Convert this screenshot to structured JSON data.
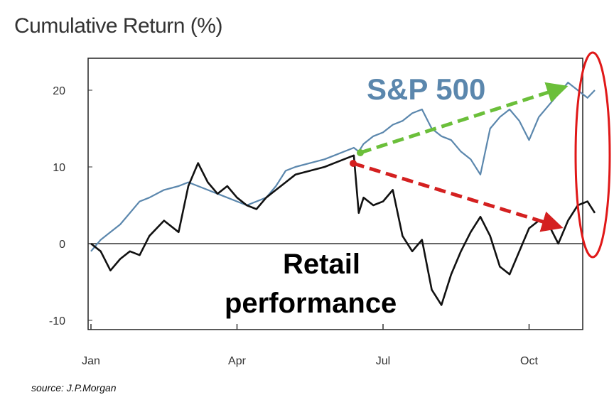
{
  "title": "Cumulative Return (%)",
  "source": "source: J.P.Morgan",
  "colors": {
    "sp500": "#5b87ad",
    "retail": "#111111",
    "green_arrow": "#6bbf3a",
    "red_arrow": "#d42020",
    "highlight_ellipse": "#e01818"
  },
  "chart_data": {
    "type": "line",
    "title": "Cumulative Return (%)",
    "xlabel": "",
    "ylabel": "",
    "x_range": [
      "Jan",
      "Nov"
    ],
    "ylim": [
      -11,
      24
    ],
    "x_ticks": [
      "Jan",
      "Apr",
      "Jul",
      "Oct"
    ],
    "y_ticks": [
      20,
      10,
      0,
      -10
    ],
    "grid": false,
    "zero_line": true,
    "x_unit": "months since start of year",
    "series": [
      {
        "name": "S&P 500",
        "x": [
          0.0,
          0.2,
          0.4,
          0.6,
          0.8,
          1.0,
          1.2,
          1.5,
          1.8,
          2.0,
          2.2,
          2.4,
          2.6,
          2.8,
          3.0,
          3.2,
          3.4,
          3.6,
          3.8,
          4.0,
          4.2,
          4.5,
          4.8,
          5.0,
          5.2,
          5.4,
          5.5,
          5.6,
          5.8,
          6.0,
          6.2,
          6.4,
          6.6,
          6.8,
          7.0,
          7.2,
          7.4,
          7.6,
          7.8,
          8.0,
          8.2,
          8.4,
          8.6,
          8.8,
          9.0,
          9.2,
          9.4,
          9.6,
          9.8,
          10.0,
          10.2,
          10.35
        ],
        "values": [
          -1.0,
          0.5,
          1.5,
          2.5,
          4.0,
          5.5,
          6.0,
          7.0,
          7.5,
          8.0,
          7.5,
          7.0,
          6.5,
          6.0,
          5.5,
          5.0,
          5.5,
          6.0,
          7.5,
          9.5,
          10.0,
          10.5,
          11.0,
          11.5,
          12.0,
          12.5,
          12.0,
          13.0,
          14.0,
          14.5,
          15.5,
          16.0,
          17.0,
          17.5,
          15.0,
          14.0,
          13.5,
          12.0,
          11.0,
          9.0,
          15.0,
          16.5,
          17.5,
          16.0,
          13.5,
          16.5,
          18.0,
          19.5,
          21.0,
          20.0,
          19.0,
          20.0
        ]
      },
      {
        "name": "Retail performance",
        "x": [
          0.0,
          0.2,
          0.4,
          0.6,
          0.8,
          1.0,
          1.2,
          1.5,
          1.8,
          2.0,
          2.2,
          2.4,
          2.6,
          2.8,
          3.0,
          3.2,
          3.4,
          3.6,
          3.8,
          4.0,
          4.2,
          4.5,
          4.8,
          5.0,
          5.2,
          5.4,
          5.5,
          5.6,
          5.8,
          6.0,
          6.2,
          6.4,
          6.6,
          6.8,
          7.0,
          7.2,
          7.4,
          7.6,
          7.8,
          8.0,
          8.2,
          8.4,
          8.6,
          8.8,
          9.0,
          9.2,
          9.4,
          9.6,
          9.8,
          10.0,
          10.2,
          10.35
        ],
        "values": [
          0.0,
          -1.0,
          -3.5,
          -2.0,
          -1.0,
          -1.5,
          1.0,
          3.0,
          1.5,
          7.5,
          10.5,
          8.0,
          6.5,
          7.5,
          6.0,
          5.0,
          4.5,
          6.0,
          7.0,
          8.0,
          9.0,
          9.5,
          10.0,
          10.5,
          11.0,
          11.5,
          4.0,
          6.0,
          5.0,
          5.5,
          7.0,
          1.0,
          -1.0,
          0.5,
          -6.0,
          -8.0,
          -4.0,
          -1.0,
          1.5,
          3.5,
          1.0,
          -3.0,
          -4.0,
          -1.0,
          2.0,
          3.0,
          2.5,
          0.0,
          3.0,
          5.0,
          5.5,
          4.0
        ]
      }
    ],
    "annotations": {
      "sp500_label": "S&P 500",
      "retail_label_line1": "Retail",
      "retail_label_line2": "performance"
    }
  }
}
